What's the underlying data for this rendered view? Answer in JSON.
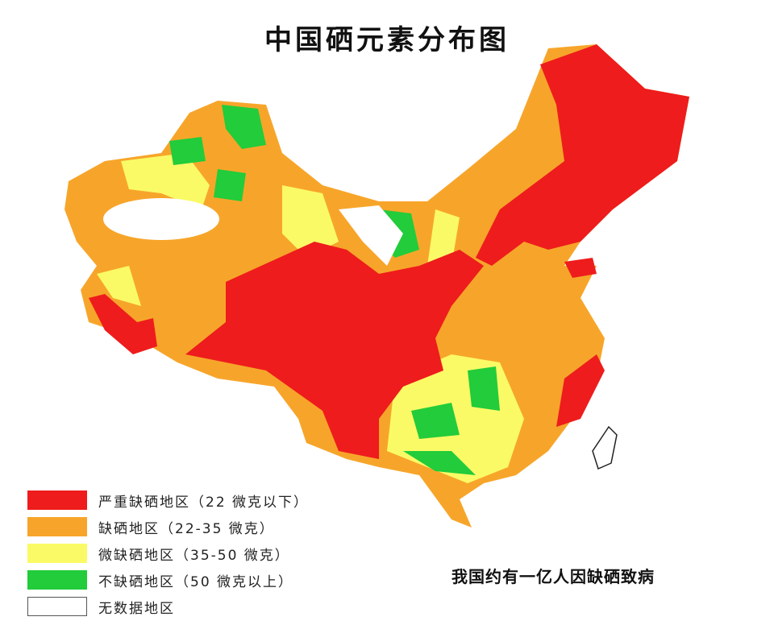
{
  "title": "中国硒元素分布图",
  "note": "我国约有一亿人因缺硒致病",
  "legend": [
    {
      "label": "严重缺硒地区（22 微克以下）",
      "color": "#ee1c1c"
    },
    {
      "label": "缺硒地区（22-35 微克）",
      "color": "#f7a52a"
    },
    {
      "label": "微缺硒地区（35-50 微克）",
      "color": "#fafa66"
    },
    {
      "label": "不缺硒地区（50 微克以上）",
      "color": "#22cc3a"
    },
    {
      "label": "无数据地区",
      "color": "#ffffff"
    }
  ]
}
